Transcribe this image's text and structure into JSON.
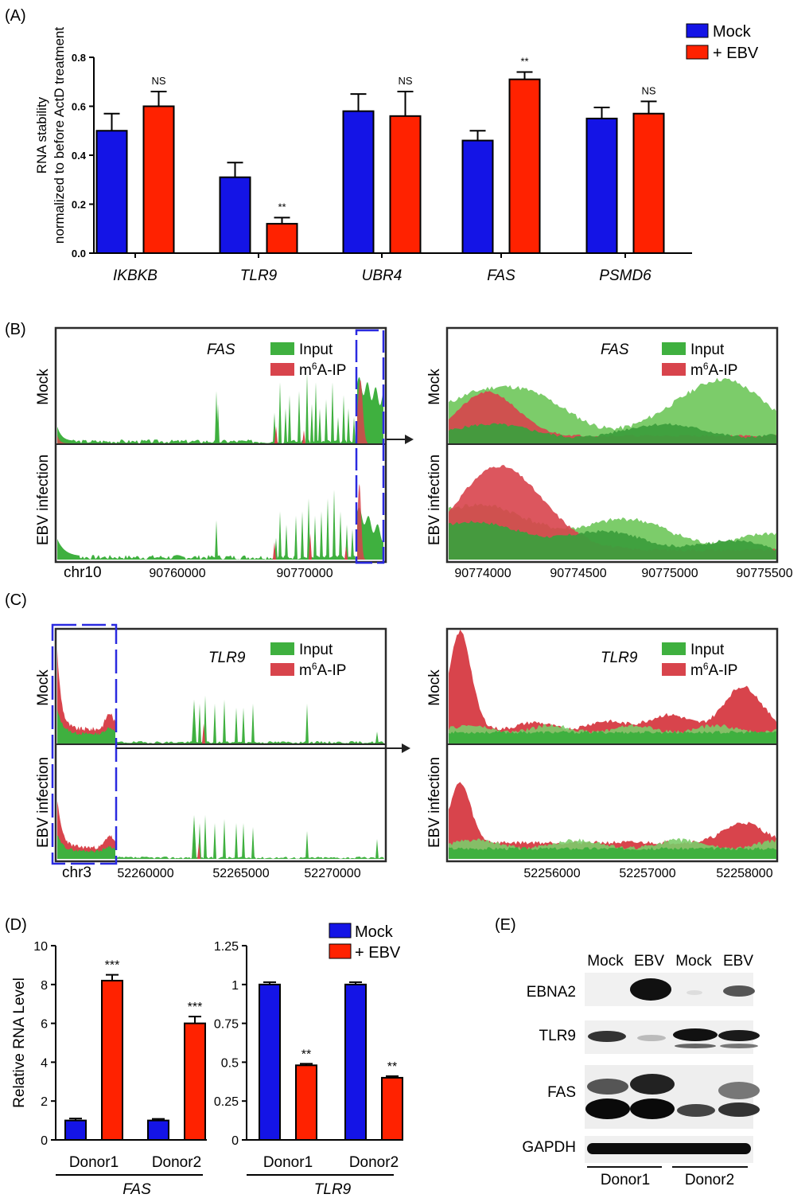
{
  "colors": {
    "mock": "#1414e6",
    "ebv": "#ff2200",
    "input": "#3fb03f",
    "input_light": "#7ccc6a",
    "m6a": "#d8444c",
    "box": "#2a2ae0",
    "frame": "#2b2b2b"
  },
  "chart_data": [
    {
      "panel_label": "(A)",
      "type": "bar",
      "ylabel_lines": [
        "RNA stability",
        "normalized to before ActD treatment"
      ],
      "ylim": [
        0,
        0.8
      ],
      "yticks": [
        "0.0",
        "0.2",
        "0.4",
        "0.6",
        "0.8"
      ],
      "categories": [
        "IKBKB",
        "TLR9",
        "UBR4",
        "FAS",
        "PSMD6"
      ],
      "series": [
        {
          "name": "Mock",
          "color": "#1414e6",
          "values": [
            0.5,
            0.31,
            0.58,
            0.46,
            0.55
          ],
          "errors": [
            0.07,
            0.06,
            0.07,
            0.04,
            0.045
          ]
        },
        {
          "name": "+ EBV",
          "color": "#ff2200",
          "values": [
            0.6,
            0.12,
            0.56,
            0.71,
            0.57
          ],
          "errors": [
            0.06,
            0.025,
            0.1,
            0.03,
            0.05
          ]
        }
      ],
      "annotations": [
        "NS",
        "**",
        "NS",
        "**",
        "NS"
      ],
      "legend": "top-right"
    },
    {
      "panel_label": "(B)",
      "type": "area",
      "gene": "FAS",
      "chrom": "chr10",
      "legend": [
        "Input",
        "m6A-IP"
      ],
      "tracks": [
        "Mock",
        "EBV infection"
      ],
      "xticks_left": [
        "90760000",
        "90770000"
      ],
      "xticks_right": [
        "90774000",
        "90774500",
        "90775000",
        "90775500"
      ]
    },
    {
      "panel_label": "(C)",
      "type": "area",
      "gene": "TLR9",
      "chrom": "chr3",
      "legend": [
        "Input",
        "m6A-IP"
      ],
      "tracks": [
        "Mock",
        "EBV infection"
      ],
      "xticks_left": [
        "52260000",
        "52265000",
        "52270000"
      ],
      "xticks_right": [
        "52256000",
        "52257000",
        "52258000"
      ]
    },
    {
      "panel_label": "(D)",
      "type": "bar",
      "ylabel": "Relative RNA Level",
      "subplots": [
        {
          "gene": "FAS",
          "ylim": [
            0,
            10
          ],
          "yticks": [
            "0",
            "2",
            "4",
            "6",
            "8",
            "10"
          ],
          "categories": [
            "Donor1",
            "Donor2"
          ],
          "series": [
            {
              "name": "Mock",
              "values": [
                1.0,
                1.0
              ],
              "errors": [
                0.1,
                0.08
              ]
            },
            {
              "name": "+ EBV",
              "values": [
                8.2,
                6.0
              ],
              "errors": [
                0.3,
                0.35
              ]
            }
          ],
          "annotations": [
            "***",
            "***"
          ]
        },
        {
          "gene": "TLR9",
          "ylim": [
            0,
            1.25
          ],
          "yticks": [
            "0",
            "0.25",
            "0.5",
            "0.75",
            "1",
            "1.25"
          ],
          "categories": [
            "Donor1",
            "Donor2"
          ],
          "series": [
            {
              "name": "Mock",
              "values": [
                1.0,
                1.0
              ],
              "errors": [
                0.015,
                0.015
              ]
            },
            {
              "name": "+ EBV",
              "values": [
                0.48,
                0.4
              ],
              "errors": [
                0.01,
                0.01
              ]
            }
          ],
          "annotations": [
            "**",
            "**"
          ]
        }
      ],
      "legend": [
        "Mock",
        "+ EBV"
      ]
    }
  ],
  "western": {
    "panel_label": "(E)",
    "lanes": [
      "Mock",
      "EBV",
      "Mock",
      "EBV"
    ],
    "rows": [
      "EBNA2",
      "TLR9",
      "FAS",
      "GAPDH"
    ],
    "donors": [
      "Donor1",
      "Donor2"
    ]
  }
}
